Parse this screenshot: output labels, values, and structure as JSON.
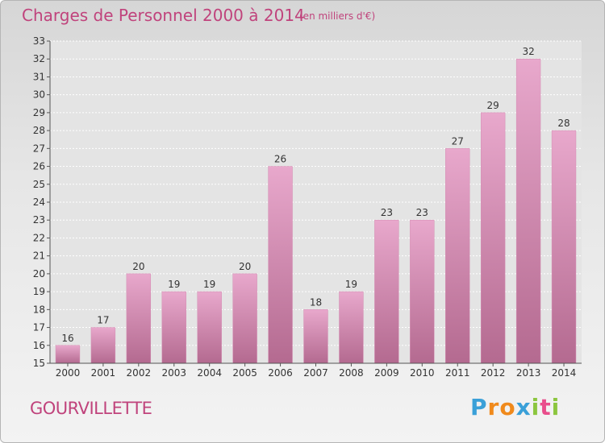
{
  "header": {
    "title": "Charges de Personnel 2000 à 2014",
    "unit": "(en milliers d'€)"
  },
  "footer": {
    "commune": "GOURVILLETTE",
    "logo": {
      "letters": [
        "P",
        "r",
        "o",
        "x",
        "i",
        "t",
        "i"
      ],
      "colors": [
        "#3aa0d8",
        "#f08a1c",
        "#f08a1c",
        "#3aa0d8",
        "#8cc63f",
        "#e94e8c",
        "#8cc63f"
      ]
    }
  },
  "colors": {
    "bar_light": "#e8a8cc",
    "bar_dark": "#b46a90",
    "text": "#333333",
    "accent": "#c0437c"
  },
  "chart_data": {
    "type": "bar",
    "categories": [
      "2000",
      "2001",
      "2002",
      "2003",
      "2004",
      "2005",
      "2006",
      "2007",
      "2008",
      "2009",
      "2010",
      "2011",
      "2012",
      "2013",
      "2014"
    ],
    "values": [
      16,
      17,
      20,
      19,
      19,
      20,
      26,
      18,
      19,
      23,
      23,
      27,
      29,
      32,
      28
    ],
    "ylim": [
      15,
      33
    ],
    "yticks": [
      15,
      16,
      17,
      18,
      19,
      20,
      21,
      22,
      23,
      24,
      25,
      26,
      27,
      28,
      29,
      30,
      31,
      32,
      33
    ],
    "grid": true,
    "legend": "none",
    "title": "Charges de Personnel 2000 à 2014",
    "xlabel": "",
    "ylabel": ""
  }
}
